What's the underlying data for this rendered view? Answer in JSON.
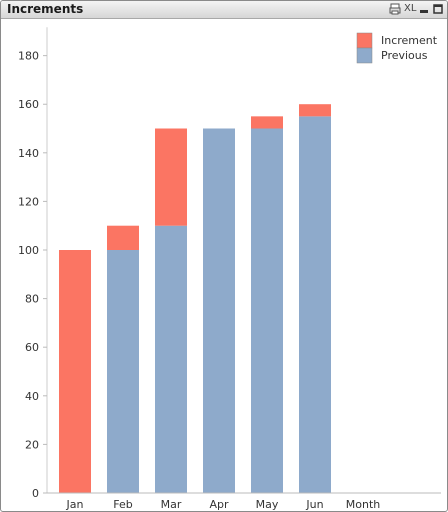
{
  "window": {
    "title": "Increments",
    "xl_label": "XL"
  },
  "chart_data": {
    "type": "bar",
    "stacked": true,
    "categories": [
      "Jan",
      "Feb",
      "Mar",
      "Apr",
      "May",
      "Jun"
    ],
    "series": [
      {
        "name": "Previous",
        "color": "#8eaacb",
        "values": [
          0,
          100,
          110,
          150,
          150,
          155
        ]
      },
      {
        "name": "Increment",
        "color": "#fb7563",
        "values": [
          100,
          10,
          40,
          0,
          5,
          5
        ]
      }
    ],
    "legend_order": [
      "Increment",
      "Previous"
    ],
    "legend_position": "top-right",
    "xlabel": "Month",
    "ylabel": "",
    "ylim": [
      0,
      190
    ],
    "yticks": [
      0,
      20,
      40,
      60,
      80,
      100,
      120,
      140,
      160,
      180
    ],
    "grid": false
  }
}
